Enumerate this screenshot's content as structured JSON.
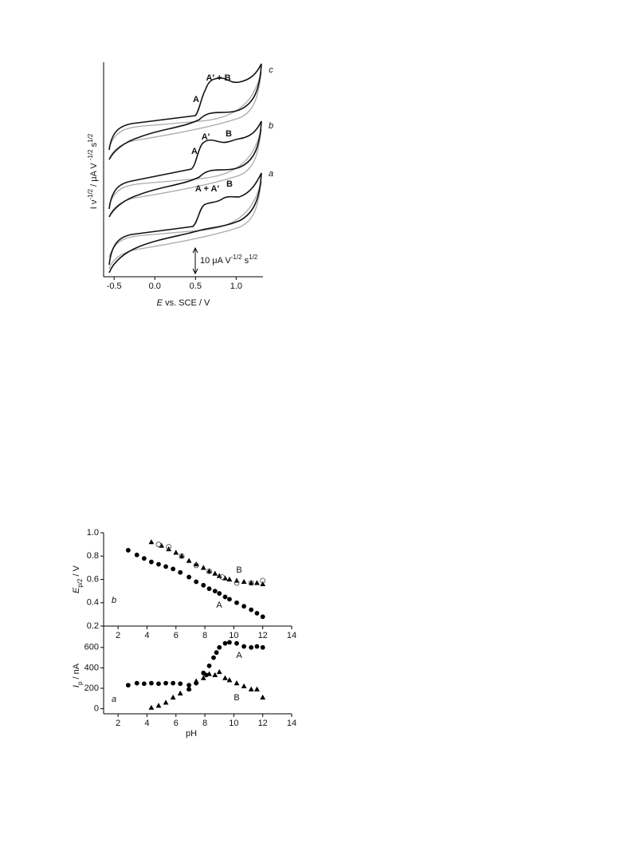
{
  "chart_data": [
    {
      "type": "cv",
      "xlim": [
        -0.6,
        1.3
      ],
      "xticks": [
        -0.5,
        {
          "value": 0,
          "label": "0.0"
        },
        0.5,
        {
          "value": 1,
          "label": "1.0"
        }
      ],
      "xlabel": [
        "E",
        " vs. SCE / V"
      ],
      "ylabel": [
        "I ν",
        "-1/2",
        " / μA V ",
        "-1/2",
        " s",
        "1/2"
      ],
      "annotations": [
        "A' + B",
        "A",
        "c",
        "A'",
        "B",
        "A",
        "b",
        "A + A'",
        "B",
        "a"
      ],
      "scale_bar": [
        "10 μA V",
        "-1/2",
        " s",
        "1/2"
      ]
    },
    {
      "type": "scatter",
      "panel": "b",
      "ylabel": [
        "E",
        "p/2",
        " / V"
      ],
      "xlim": [
        1,
        14
      ],
      "xticks": [
        2,
        4,
        6,
        8,
        10,
        12,
        14
      ],
      "ylim": [
        0.2,
        1.0
      ],
      "yticks": [
        0.2,
        0.4,
        0.6,
        0.8,
        {
          "value": 1.0,
          "label": "1.0"
        }
      ],
      "series": [
        {
          "name": "A",
          "marker": "circle",
          "color": "#000000",
          "x": [
            2.7,
            3.3,
            3.8,
            4.3,
            4.8,
            5.3,
            5.8,
            6.3,
            6.9,
            7.4,
            7.9,
            8.3,
            8.7,
            9.0,
            9.4,
            9.7,
            10.2,
            10.7,
            11.2,
            11.6,
            12.0
          ],
          "values": [
            0.85,
            0.81,
            0.78,
            0.75,
            0.73,
            0.71,
            0.69,
            0.66,
            0.62,
            0.58,
            0.55,
            0.52,
            0.5,
            0.48,
            0.45,
            0.43,
            0.4,
            0.37,
            0.34,
            0.31,
            0.28
          ]
        },
        {
          "name": "B",
          "marker": "triangle",
          "color": "#000000",
          "x": [
            4.3,
            5.0,
            5.5,
            6.0,
            6.4,
            6.9,
            7.4,
            7.9,
            8.3,
            8.7,
            9.0,
            9.4,
            9.7,
            10.2,
            10.7,
            11.2,
            11.6,
            12.0
          ],
          "values": [
            0.92,
            0.89,
            0.86,
            0.83,
            0.8,
            0.76,
            0.73,
            0.7,
            0.67,
            0.65,
            0.63,
            0.61,
            0.6,
            0.59,
            0.58,
            0.57,
            0.57,
            0.56
          ]
        },
        {
          "marker": "open-circle",
          "color": "#555555",
          "x": [
            4.8,
            5.5,
            6.4,
            7.4,
            8.3,
            9.2,
            10.2,
            11.2,
            12.0
          ],
          "values": [
            0.9,
            0.88,
            0.8,
            0.72,
            0.67,
            0.62,
            0.57,
            0.57,
            0.59
          ]
        }
      ]
    },
    {
      "type": "scatter",
      "panel": "a",
      "ylabel": [
        "I",
        "p",
        " / nA"
      ],
      "xlabel": "pH",
      "xlim": [
        1,
        14
      ],
      "xticks": [
        2,
        4,
        6,
        8,
        10,
        12,
        14
      ],
      "ylim": [
        -50,
        700
      ],
      "yticks": [
        0,
        200,
        400,
        600
      ],
      "series": [
        {
          "name": "A",
          "marker": "circle",
          "color": "#000000",
          "x": [
            2.7,
            3.3,
            3.8,
            4.3,
            4.8,
            5.3,
            5.8,
            6.3,
            6.9,
            6.9,
            7.4,
            7.9,
            8.1,
            8.3,
            8.6,
            8.8,
            9.0,
            9.4,
            9.7,
            10.2,
            10.7,
            11.2,
            11.6,
            12.0
          ],
          "values": [
            230,
            250,
            245,
            250,
            245,
            250,
            250,
            245,
            230,
            190,
            250,
            350,
            330,
            420,
            500,
            550,
            600,
            640,
            650,
            640,
            610,
            600,
            610,
            600
          ]
        },
        {
          "name": "B",
          "marker": "triangle",
          "color": "#000000",
          "x": [
            4.3,
            4.8,
            5.3,
            5.8,
            6.3,
            6.9,
            7.4,
            7.9,
            8.3,
            8.7,
            9.0,
            9.4,
            9.7,
            10.2,
            10.7,
            11.2,
            11.6,
            12.0
          ],
          "values": [
            10,
            30,
            60,
            110,
            150,
            200,
            270,
            300,
            340,
            330,
            360,
            300,
            280,
            250,
            220,
            190,
            190,
            110
          ]
        }
      ]
    }
  ]
}
